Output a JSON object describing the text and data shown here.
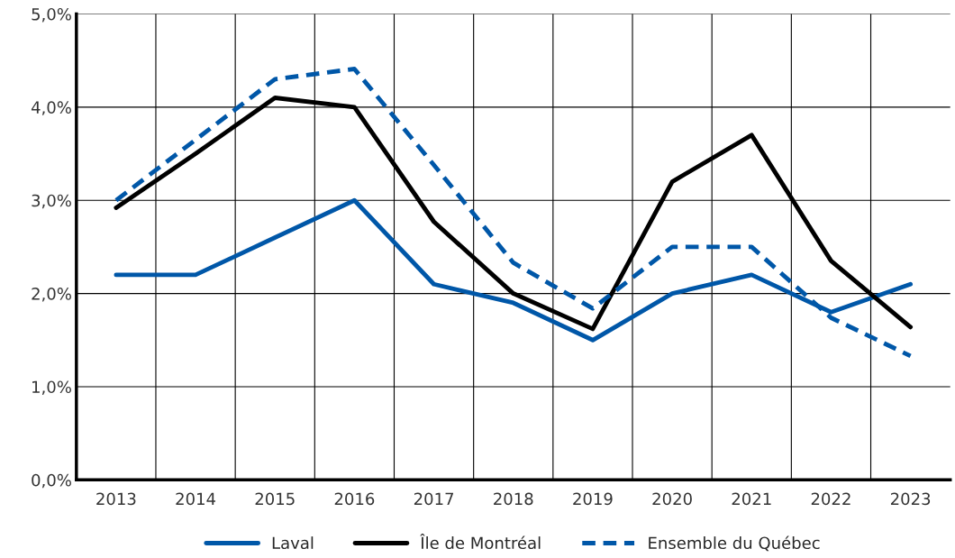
{
  "chart_data": {
    "type": "line",
    "categories": [
      "2013",
      "2014",
      "2015",
      "2016",
      "2017",
      "2018",
      "2019",
      "2020",
      "2021",
      "2022",
      "2023"
    ],
    "series": [
      {
        "name": "Laval",
        "color": "#0057a8",
        "line_style": "solid",
        "values": [
          2.2,
          2.2,
          2.6,
          3.0,
          2.1,
          1.9,
          1.5,
          2.0,
          2.2,
          1.8,
          2.1
        ]
      },
      {
        "name": "Île de Montréal",
        "color": "#000000",
        "line_style": "solid",
        "values": [
          2.92,
          3.5,
          4.1,
          4.0,
          2.77,
          2.0,
          1.62,
          3.2,
          3.7,
          2.35,
          1.64
        ]
      },
      {
        "name": "Ensemble du Québec",
        "color": "#0057a8",
        "line_style": "dashed",
        "values": [
          3.0,
          3.65,
          4.3,
          4.41,
          3.38,
          2.33,
          1.84,
          2.5,
          2.5,
          1.74,
          1.33
        ]
      }
    ],
    "ylim": [
      0,
      5
    ],
    "yticks": [
      {
        "value": 0,
        "label": "0,0%"
      },
      {
        "value": 1,
        "label": "1,0%"
      },
      {
        "value": 2,
        "label": "2,0%"
      },
      {
        "value": 3,
        "label": "3,0%"
      },
      {
        "value": 4,
        "label": "4,0%"
      },
      {
        "value": 5,
        "label": "5,0%"
      }
    ],
    "grid": true,
    "legend": "bottom",
    "marker": "none"
  }
}
